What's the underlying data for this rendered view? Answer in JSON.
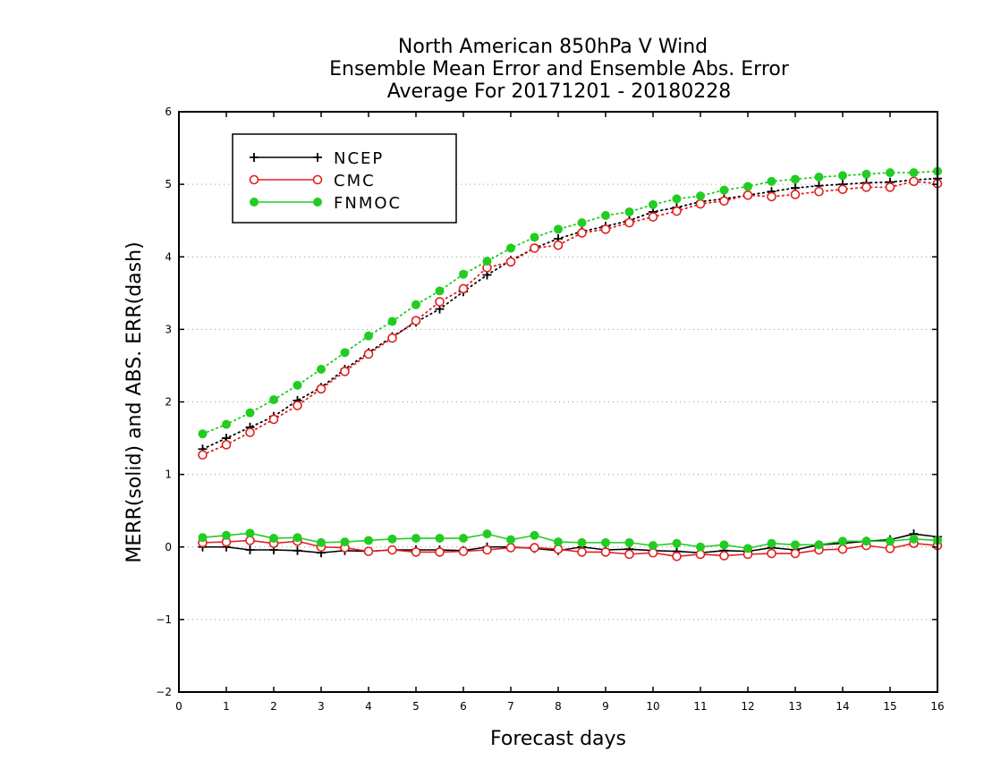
{
  "chart_data": {
    "type": "line",
    "title_lines": [
      "North American 850hPa V Wind",
      "Ensemble Mean Error and Ensemble Abs. Error",
      "Average For 20171201 - 20180228"
    ],
    "xlabel": "Forecast days",
    "ylabel": "MERR(solid) and ABS. ERR(dash)",
    "xlim": [
      0,
      16
    ],
    "ylim": [
      -2,
      6
    ],
    "xticks": [
      0,
      1,
      2,
      3,
      4,
      5,
      6,
      7,
      8,
      9,
      10,
      11,
      12,
      13,
      14,
      15,
      16
    ],
    "yticks": [
      -2,
      -1,
      0,
      1,
      2,
      3,
      4,
      5,
      6
    ],
    "ytick_labels": [
      "−2",
      "−1",
      "0",
      "1",
      "2",
      "3",
      "4",
      "5",
      "6"
    ],
    "grid": "horizontal dotted",
    "legend_placement": "top-left",
    "x": [
      0.5,
      1,
      1.5,
      2,
      2.5,
      3,
      3.5,
      4,
      4.5,
      5,
      5.5,
      6,
      6.5,
      7,
      7.5,
      8,
      8.5,
      9,
      9.5,
      10,
      10.5,
      11,
      11.5,
      12,
      12.5,
      13,
      13.5,
      14,
      14.5,
      15,
      15.5,
      16
    ],
    "series": [
      {
        "name": "NCEP",
        "color": "#000000",
        "marker": "plus",
        "abs_err": [
          1.35,
          1.5,
          1.65,
          1.8,
          2.02,
          2.2,
          2.45,
          2.68,
          2.9,
          3.1,
          3.28,
          3.52,
          3.75,
          3.95,
          4.12,
          4.25,
          4.35,
          4.42,
          4.5,
          4.62,
          4.68,
          4.76,
          4.8,
          4.85,
          4.9,
          4.95,
          4.98,
          5.0,
          5.02,
          5.03,
          5.06,
          5.08
        ],
        "mean_err": [
          0.0,
          0.0,
          -0.04,
          -0.04,
          -0.05,
          -0.08,
          -0.05,
          -0.06,
          -0.04,
          -0.04,
          -0.04,
          -0.05,
          0.0,
          0.0,
          -0.02,
          -0.05,
          0.0,
          -0.04,
          -0.03,
          -0.05,
          -0.06,
          -0.08,
          -0.05,
          -0.06,
          -0.01,
          -0.04,
          0.03,
          0.05,
          0.08,
          0.1,
          0.18,
          0.14
        ]
      },
      {
        "name": "CMC",
        "color": "#e02020",
        "marker": "open-circle",
        "abs_err": [
          1.27,
          1.41,
          1.58,
          1.76,
          1.95,
          2.18,
          2.42,
          2.66,
          2.88,
          3.12,
          3.38,
          3.56,
          3.85,
          3.93,
          4.12,
          4.16,
          4.33,
          4.38,
          4.47,
          4.55,
          4.63,
          4.73,
          4.77,
          4.85,
          4.83,
          4.86,
          4.9,
          4.93,
          4.96,
          4.96,
          5.04,
          5.01
        ],
        "mean_err": [
          0.06,
          0.07,
          0.09,
          0.05,
          0.08,
          0.0,
          -0.01,
          -0.06,
          -0.04,
          -0.07,
          -0.07,
          -0.06,
          -0.04,
          -0.01,
          -0.01,
          -0.03,
          -0.07,
          -0.07,
          -0.1,
          -0.08,
          -0.13,
          -0.1,
          -0.12,
          -0.1,
          -0.09,
          -0.09,
          -0.04,
          -0.03,
          0.02,
          -0.02,
          0.05,
          0.02
        ]
      },
      {
        "name": "FNMOC",
        "color": "#22cc22",
        "marker": "filled-circle",
        "abs_err": [
          1.56,
          1.69,
          1.85,
          2.03,
          2.23,
          2.45,
          2.68,
          2.91,
          3.11,
          3.34,
          3.53,
          3.76,
          3.94,
          4.12,
          4.27,
          4.38,
          4.47,
          4.57,
          4.62,
          4.72,
          4.8,
          4.84,
          4.92,
          4.97,
          5.04,
          5.07,
          5.1,
          5.12,
          5.14,
          5.16,
          5.16,
          5.18
        ],
        "mean_err": [
          0.13,
          0.16,
          0.19,
          0.12,
          0.13,
          0.06,
          0.07,
          0.09,
          0.11,
          0.12,
          0.12,
          0.12,
          0.18,
          0.1,
          0.16,
          0.07,
          0.06,
          0.06,
          0.06,
          0.02,
          0.05,
          0.0,
          0.03,
          -0.02,
          0.05,
          0.03,
          0.03,
          0.08,
          0.08,
          0.08,
          0.11,
          0.09
        ]
      }
    ]
  }
}
